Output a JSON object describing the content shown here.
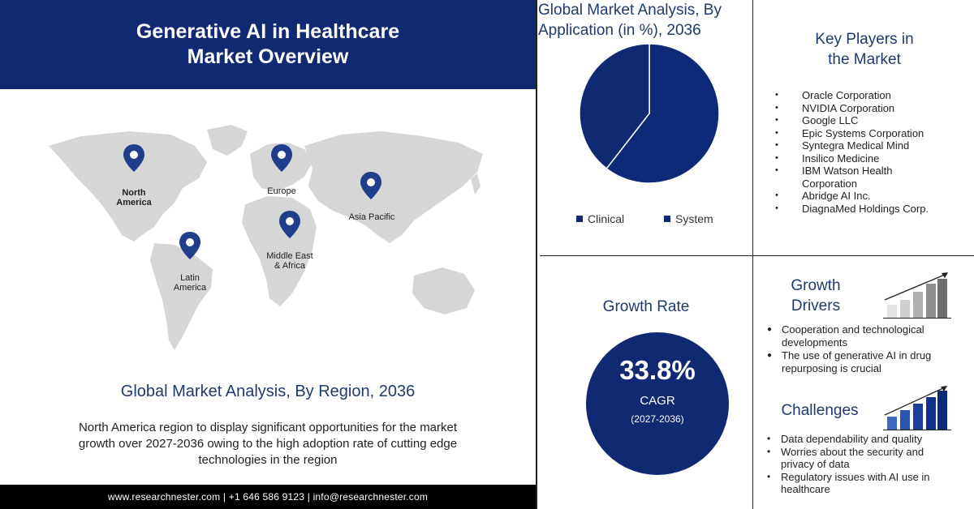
{
  "header": {
    "title": "Generative AI in Healthcare\nMarket Overview"
  },
  "map": {
    "regions": [
      {
        "name": "North\nAmerica"
      },
      {
        "name": "Europe"
      },
      {
        "name": "Asia Pacific"
      },
      {
        "name": "Middle East\n& Africa"
      },
      {
        "name": "Latin\nAmerica"
      }
    ],
    "pin_color": "#1f3f8c",
    "land_color": "#d6d6d6"
  },
  "region_section": {
    "title": "Global Market Analysis, By Region, 2036",
    "description": "North America region to display significant opportunities  for the market growth over 2027-2036 owing to the high adoption rate of cutting edge technologies  in the region"
  },
  "footer": {
    "text": "www.researchnester.com  | +1 646 586 9123 | info@researchnester.com"
  },
  "application_section": {
    "title": "Global Market Analysis, By Application (in %), 2036"
  },
  "chart_data": {
    "type": "pie",
    "categories": [
      "Clinical",
      "System"
    ],
    "values": [
      39.5,
      60.5
    ],
    "colors": [
      "#0f2a73",
      "#0c2a78"
    ],
    "title": "Global Market Analysis, By Application (in %), 2036",
    "legend": "bottom"
  },
  "key_players": {
    "title": "Key Players in\nthe Market",
    "items": [
      "Oracle Corporation",
      "NVIDIA  Corporation",
      "Google LLC",
      "Epic Systems  Corporation",
      "Syntegra Medical Mind",
      "Insilico Medicine",
      "IBM Watson Health Corporation",
      "Abridge AI Inc.",
      "DiagnaMed Holdings Corp."
    ]
  },
  "growth_rate": {
    "title": "Growth Rate",
    "value": "33.8%",
    "label": "CAGR",
    "years": "(2027-2036)"
  },
  "growth_drivers": {
    "title": "Growth\nDrivers",
    "items": [
      "Cooperation and technological developments",
      "The use of generative AI in drug repurposing is crucial"
    ]
  },
  "challenges": {
    "title": "Challenges",
    "items": [
      "Data dependability and quality",
      "Worries about the security and privacy of data",
      "Regulatory issues with AI use in healthcare"
    ]
  },
  "colors": {
    "brand_navy": "#0f2a73",
    "heading_blue": "#1f3a6e"
  },
  "icons": [
    "location-pin-icon",
    "bar-growth-icon",
    "bar-challenge-icon"
  ]
}
